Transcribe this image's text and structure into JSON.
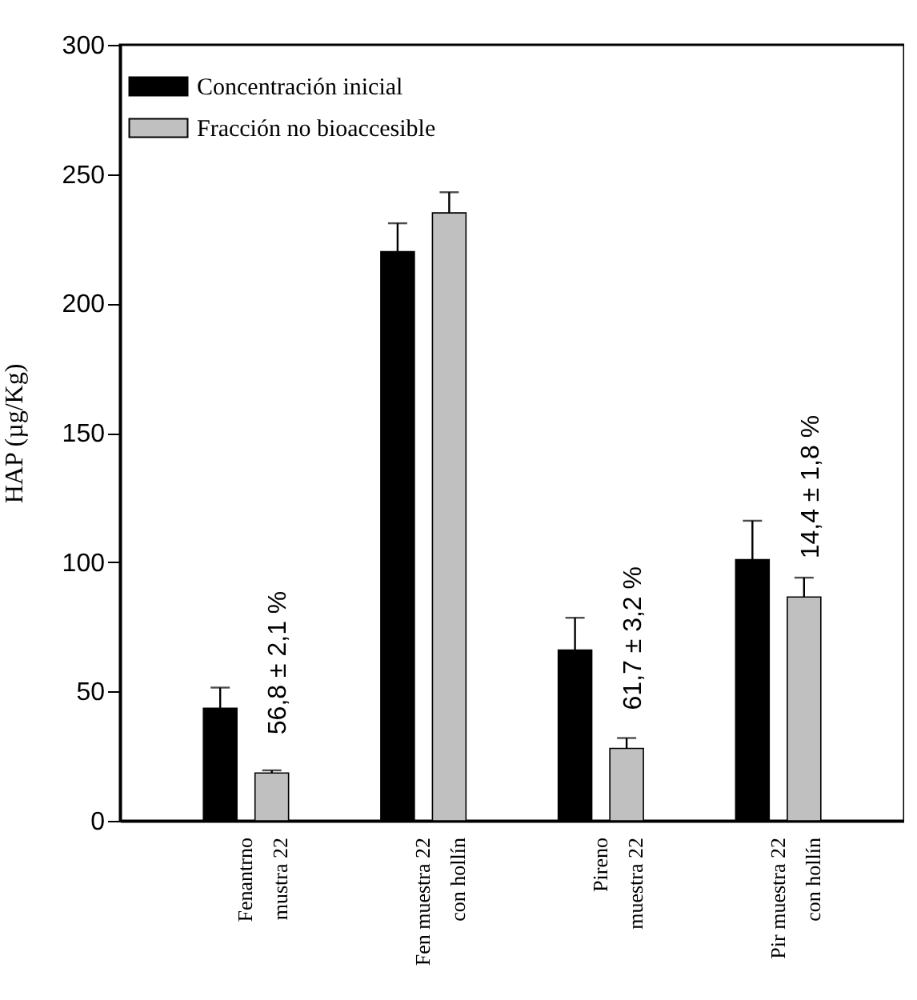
{
  "chart_data": {
    "type": "bar",
    "ylabel": "HAP (µg/Kg)",
    "categories": [
      "Fenantrno\nmustra 22",
      "Fen muestra 22\ncon hollín",
      "Pireno\nmuestra 22",
      "Pir muestra 22\ncon hollín"
    ],
    "series": [
      {
        "name": "Concentración inicial",
        "color": "#000000",
        "values": [
          43.5,
          220,
          66,
          101
        ],
        "errors": [
          [
            43.5,
            51.5
          ],
          [
            220,
            231
          ],
          [
            66,
            78.5
          ],
          [
            101,
            116
          ]
        ]
      },
      {
        "name": "Fracción no bioaccesible",
        "color": "#c0c0c0",
        "values": [
          18.5,
          235,
          28,
          86.5
        ],
        "errors": [
          [
            18.5,
            19.5
          ],
          [
            235,
            243
          ],
          [
            28,
            32
          ],
          [
            86.5,
            94
          ]
        ]
      }
    ],
    "annotations": [
      {
        "text": "56,8 ± 2,1 %",
        "x": "Fenantrno\nmustra 22",
        "y": 18.5
      },
      {
        "text": "61,7 ± 3,2 %",
        "x": "Pireno\nmuestra 22",
        "y": 28
      },
      {
        "text": "14,4 ± 1,8 %",
        "x": "Pir muestra 22\ncon hollín",
        "y": 86.5
      }
    ],
    "ylim": [
      0,
      300
    ],
    "yticks": [
      0,
      50,
      100,
      150,
      200,
      250,
      300
    ],
    "grid": false,
    "legend": "top left"
  }
}
